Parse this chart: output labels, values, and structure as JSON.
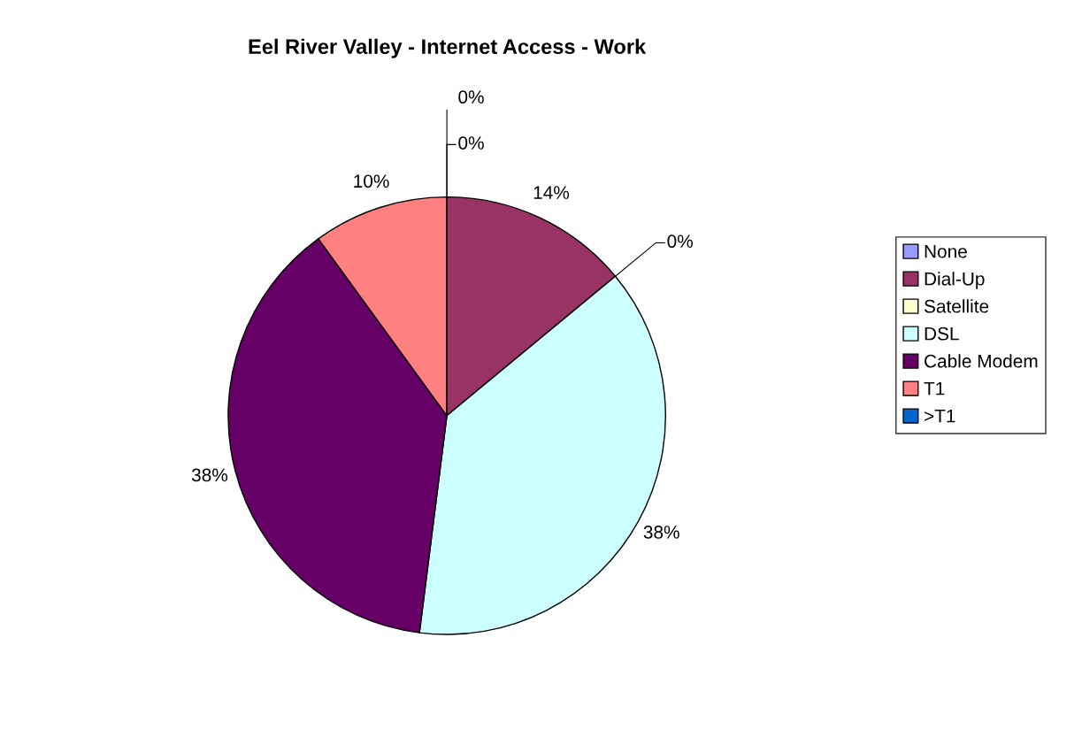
{
  "chart_data": {
    "type": "pie",
    "title": "Eel River Valley - Internet Access - Work",
    "categories": [
      "None",
      "Dial-Up",
      "Satellite",
      "DSL",
      "Cable Modem",
      "T1",
      ">T1"
    ],
    "values": [
      0,
      14,
      0,
      38,
      38,
      10,
      0
    ],
    "colors": [
      "#9999ff",
      "#993366",
      "#ffffcc",
      "#ccffff",
      "#660066",
      "#ff8080",
      "#0066cc"
    ],
    "value_labels": [
      "0%",
      "14%",
      "0%",
      "38%",
      "38%",
      "10%",
      "0%"
    ],
    "legend": "right"
  }
}
